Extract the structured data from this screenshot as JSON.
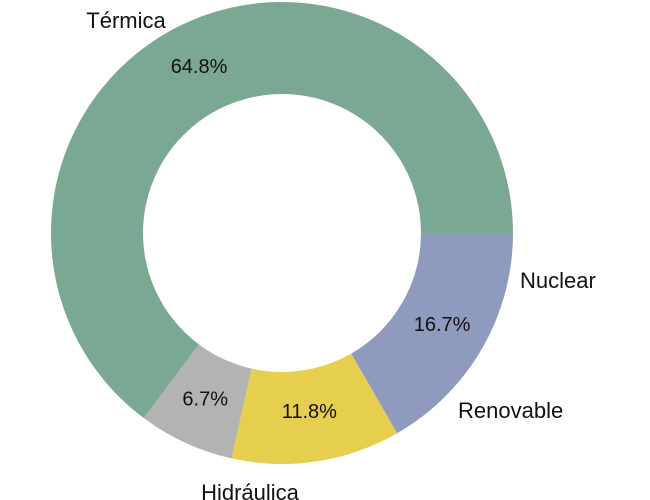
{
  "chart_data": {
    "type": "pie",
    "variant": "donut",
    "categories": [
      "Térmica",
      "Nuclear",
      "Renovable",
      "Hidráulica"
    ],
    "values": [
      64.8,
      6.7,
      11.8,
      16.7
    ],
    "value_labels": [
      "64.8%",
      "6.7%",
      "11.8%",
      "16.7%"
    ],
    "colors": [
      "#7ba892",
      "#b3b3b3",
      "#e6cf4e",
      "#8e9bbf"
    ]
  }
}
